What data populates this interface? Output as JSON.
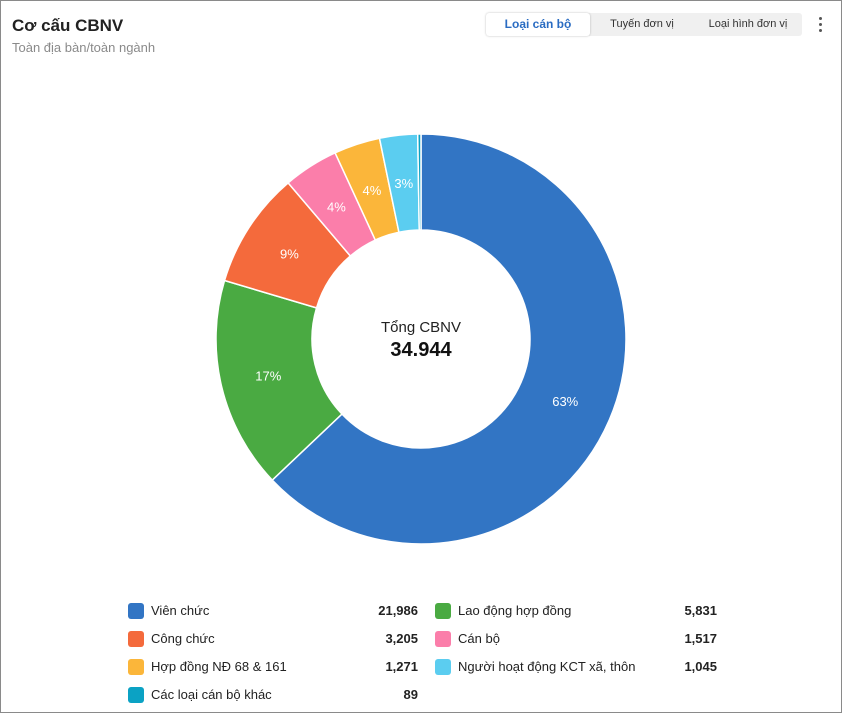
{
  "header": {
    "title": "Cơ cấu CBNV",
    "subtitle": "Toàn địa bàn/toàn ngành"
  },
  "tabs": [
    {
      "label": "Loại cán bộ",
      "active": true
    },
    {
      "label": "Tuyến đơn vị",
      "active": false
    },
    {
      "label": "Loại hình đơn vị",
      "active": false
    }
  ],
  "menu_icon": "more-vertical-icon",
  "center": {
    "caption": "Tổng CBNV",
    "total": "34.944"
  },
  "chart_data": {
    "type": "pie",
    "style": "donut",
    "categories": [
      "Viên chức",
      "Lao động hợp đồng",
      "Công chức",
      "Cán bộ",
      "Hợp đồng NĐ 68 & 161",
      "Người hoạt động KCT xã, thôn",
      "Các loại cán bộ khác"
    ],
    "values": [
      21986,
      5831,
      3205,
      1517,
      1271,
      1045,
      89
    ],
    "value_labels": [
      "21,986",
      "5,831",
      "3,205",
      "1,517",
      "1,271",
      "1,045",
      "89"
    ],
    "percent_labels": [
      "63%",
      "17%",
      "9%",
      "4%",
      "4%",
      "3%",
      ""
    ],
    "colors": [
      "#3275c4",
      "#4aaa42",
      "#f46a3c",
      "#fb7eaa",
      "#fbb63a",
      "#5bcdf0",
      "#0ba2c4"
    ],
    "legend": "bottom"
  }
}
